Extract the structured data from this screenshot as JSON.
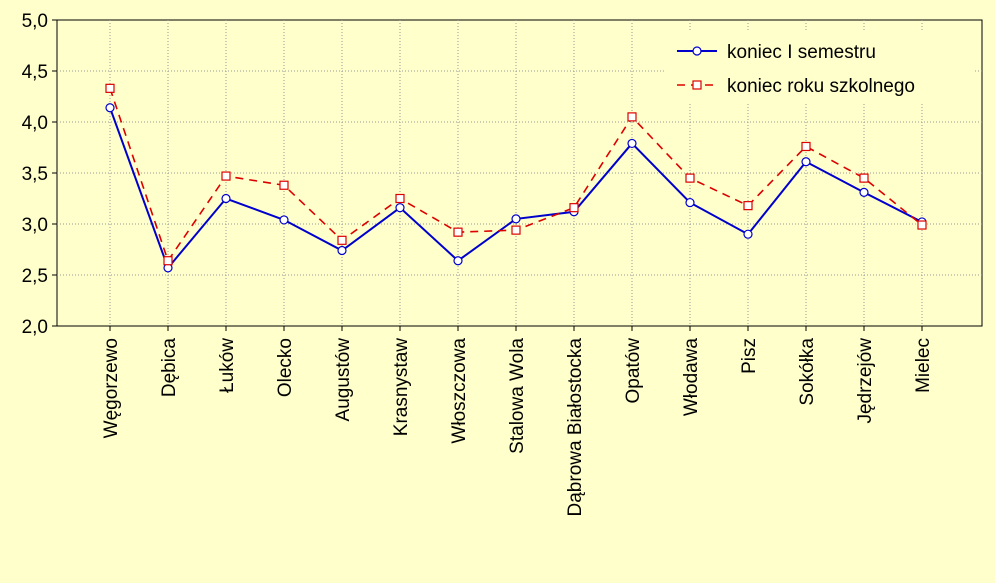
{
  "chart_data": {
    "type": "line",
    "categories": [
      "Węgorzewo",
      "Dębica",
      "Łuków",
      "Olecko",
      "Augustów",
      "Krasnystaw",
      "Włoszczowa",
      "Stalowa Wola",
      "Dąbrowa Białostocka",
      "Opatów",
      "Włodawa",
      "Pisz",
      "Sokółka",
      "Jędrzejów",
      "Mielec"
    ],
    "series": [
      {
        "name": "koniec I semestru",
        "values": [
          4.14,
          2.57,
          3.25,
          3.04,
          2.74,
          3.16,
          2.64,
          3.05,
          3.12,
          3.79,
          3.21,
          2.9,
          3.61,
          3.31,
          3.02
        ],
        "color": "#0000cc",
        "style": "solid",
        "marker": "circle"
      },
      {
        "name": "koniec roku szkolnego",
        "values": [
          4.33,
          2.64,
          3.47,
          3.38,
          2.84,
          3.25,
          2.92,
          2.94,
          3.16,
          4.05,
          3.45,
          3.18,
          3.76,
          3.45,
          2.99
        ],
        "color": "#dd0000",
        "style": "dashed",
        "marker": "square"
      }
    ],
    "y_ticks": [
      "2,0",
      "2,5",
      "3,0",
      "3,5",
      "4,0",
      "4,5",
      "5,0"
    ],
    "ylim": [
      2.0,
      5.0
    ],
    "grid": true,
    "legend_position": "top-right"
  }
}
